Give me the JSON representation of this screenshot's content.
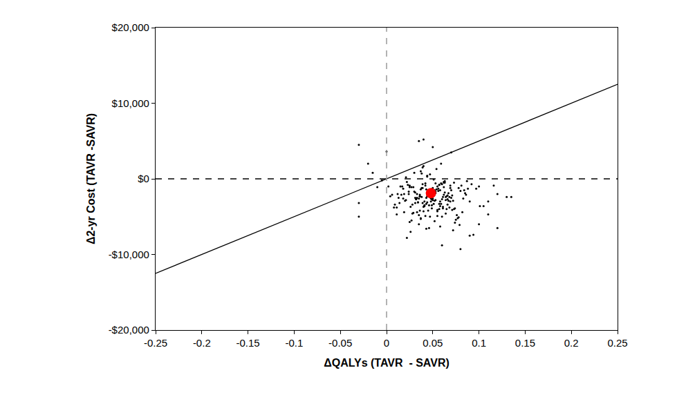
{
  "chart_data": {
    "type": "scatter",
    "x_label": "ΔQALYs (TAVR  - SAVR)",
    "y_label": "Δ2-yr Cost (TAVR -SAVR)",
    "xlim": [
      -0.25,
      0.25
    ],
    "xticks": [
      -0.25,
      -0.2,
      -0.15,
      -0.1,
      -0.05,
      0,
      0.05,
      0.1,
      0.15,
      0.2,
      0.25
    ],
    "ylim": [
      -20000,
      20000
    ],
    "yticks": [
      {
        "value": -20000,
        "label": "-$20,000"
      },
      {
        "value": -10000,
        "label": "-$10,000"
      },
      {
        "value": 0,
        "label": "$0"
      },
      {
        "value": 10000,
        "label": "$10,000"
      },
      {
        "value": 20000,
        "label": "$20,000"
      }
    ],
    "grid": false,
    "threshold_slope": 50000,
    "dashed_lines": {
      "x": 0,
      "y": 0
    },
    "series": [
      {
        "color": "#000000",
        "marker": "dot",
        "x": [
          0.047,
          0.031,
          0.062,
          0.018,
          0.055,
          0.039,
          0.072,
          0.044,
          0.026,
          0.058,
          0.051,
          0.035,
          0.081,
          0.012,
          0.066,
          0.042,
          0.049,
          0.029,
          0.077,
          0.053,
          0.038,
          0.061,
          0.021,
          0.045,
          0.069,
          0.033,
          0.057,
          0.004,
          0.088,
          0.041,
          0.052,
          0.024,
          0.064,
          0.047,
          0.036,
          0.073,
          0.015,
          0.059,
          0.043,
          0.092,
          0.028,
          0.054,
          0.067,
          0.037,
          0.046,
          0.019,
          0.079,
          0.05,
          0.032,
          0.063,
          0.008,
          0.056,
          0.04,
          0.071,
          0.025,
          0.06,
          0.048,
          0.084,
          0.034,
          0.044,
          0.052,
          0.011,
          0.068,
          0.039,
          0.057,
          0.027,
          0.075,
          0.045,
          0.061,
          0.022,
          0.05,
          0.097,
          0.036,
          0.065,
          0.043,
          0.017,
          0.058,
          0.03,
          0.07,
          0.048,
          0.041,
          0.086,
          0.023,
          0.055,
          0.037,
          0.066,
          -0.005,
          0.049,
          0.031,
          0.074,
          0.044,
          0.059,
          0.014,
          0.052,
          0.082,
          0.035,
          0.062,
          0.026,
          0.047,
          0.101,
          0.056,
          0.02,
          0.039,
          0.071,
          0.046,
          0.063,
          0.009,
          0.053,
          0.078,
          0.033,
          0.042,
          0.068,
          0.024,
          0.058,
          0.038,
          0.09,
          0.051,
          0.029,
          0.064,
          0.045,
          0.034,
          0.06,
          0.076,
          0.016,
          0.048,
          0.04,
          0.083,
          0.054,
          0.027,
          0.067,
          0.043,
          0.002,
          0.057,
          0.036,
          0.072,
          0.05,
          0.021,
          0.062,
          0.105,
          0.046,
          0.03,
          0.055,
          0.069,
          0.041,
          0.013,
          0.059,
          0.037,
          0.08,
          0.049,
          0.025,
          0.064,
          0.044,
          0.094,
          0.032,
          0.053,
          0.074,
          0.018,
          0.047,
          0.061,
          0.039,
          0.057,
          0.006,
          0.045,
          0.07,
          0.035,
          0.052,
          0.087,
          0.028,
          0.063,
          0.042,
          0.078,
          0.05,
          0.022,
          0.066,
          0.038,
          0.011,
          0.055,
          0.11,
          0.033,
          0.048,
          0.06,
          0.043,
          0.025,
          0.073,
          0.051,
          0.036,
          0.065,
          -0.01,
          0.046,
          0.085,
          0.031,
          0.058,
          0.04,
          0.069,
          0.019,
          0.053,
          0.116,
          0.037,
          0.062,
          0.044,
          -0.03,
          -0.03,
          -0.03,
          0.04,
          0.035,
          0.135,
          0.13,
          0.08,
          0.06,
          0.12,
          0.1,
          -0.02,
          0.0,
          0.07,
          0.05,
          0.11,
          0.12,
          0.1,
          -0.015,
          0.09
        ],
        "values": [
          -1800,
          -3200,
          -500,
          -2600,
          -4100,
          -1200,
          -2900,
          300,
          -3700,
          -1500,
          -2200,
          -4800,
          -900,
          -2000,
          -3400,
          -600,
          -2700,
          -1100,
          -5200,
          -1900,
          -2400,
          -3900,
          200,
          -1600,
          -3000,
          -4400,
          -800,
          -2300,
          -1300,
          -3600,
          -5600,
          -1700,
          -2800,
          600,
          -2100,
          -4000,
          -1000,
          -3300,
          -2500,
          -700,
          -4600,
          -1400,
          -2900,
          1000,
          -3500,
          -2000,
          -6100,
          -1200,
          -2700,
          -300,
          -3800,
          -1600,
          -4300,
          -2200,
          -900,
          -5000,
          -2600,
          -1500,
          -3100,
          400,
          -1900,
          -4700,
          -2400,
          -700,
          -3300,
          -1100,
          -5400,
          -2000,
          -3700,
          -400,
          -2800,
          -1300,
          -4200,
          -2300,
          -6600,
          -1000,
          -3000,
          800,
          -2500,
          -1700,
          -3500,
          -2100,
          -800,
          -4900,
          -1400,
          -2700,
          -200,
          -3900,
          -1800,
          -5800,
          -2300,
          -600,
          -3200,
          -1500,
          -4400,
          -2600,
          -1100,
          -7000,
          -2000,
          -3600,
          -1300,
          -2900,
          1500,
          -4100,
          -2200,
          -500,
          -3400,
          -1700,
          -5100,
          -2500,
          -900,
          -3800,
          -2000,
          -6300,
          -1200,
          -3000,
          -100,
          -4500,
          -2400,
          -1600,
          -3100,
          -700,
          -4800,
          -2100,
          -1400,
          -3700,
          -2600,
          1300,
          -5500,
          -1900,
          -3300,
          -1000,
          -4000,
          -2300,
          -6800,
          -1500,
          -2800,
          -400,
          -3600,
          -2200,
          -1700,
          -4300,
          -900,
          -3000,
          -2500,
          2000,
          -5300,
          -1600,
          -3500,
          -1100,
          -4600,
          -2000,
          -7400,
          -2700,
          -600,
          -3900,
          -1300,
          -5000,
          -2400,
          -3200,
          -800,
          -2100,
          -4200,
          -1500,
          -6000,
          -2900,
          -300,
          -3400,
          -1800,
          -4900,
          -1200,
          -2600,
          -7800,
          -2200,
          700,
          -3800,
          -1000,
          -4700,
          -2000,
          -3000,
          -2700,
          -1400,
          -5700,
          -500,
          -3300,
          -2300,
          -4000,
          -1100,
          -6500,
          -1900,
          -2500,
          -3600,
          1700,
          -1200,
          -4400,
          -2800,
          -900,
          -5200,
          -2100,
          -3100,
          4500,
          -5000,
          -3200,
          5200,
          5000,
          -2400,
          -2400,
          -9300,
          -8800,
          -6500,
          -6000,
          2000,
          3600,
          3500,
          4200,
          -3000,
          -2000,
          -1000,
          800,
          -7500
        ]
      },
      {
        "color": "#ff0000",
        "marker": "circle",
        "x": [
          0.048
        ],
        "values": [
          -1900
        ]
      }
    ]
  }
}
